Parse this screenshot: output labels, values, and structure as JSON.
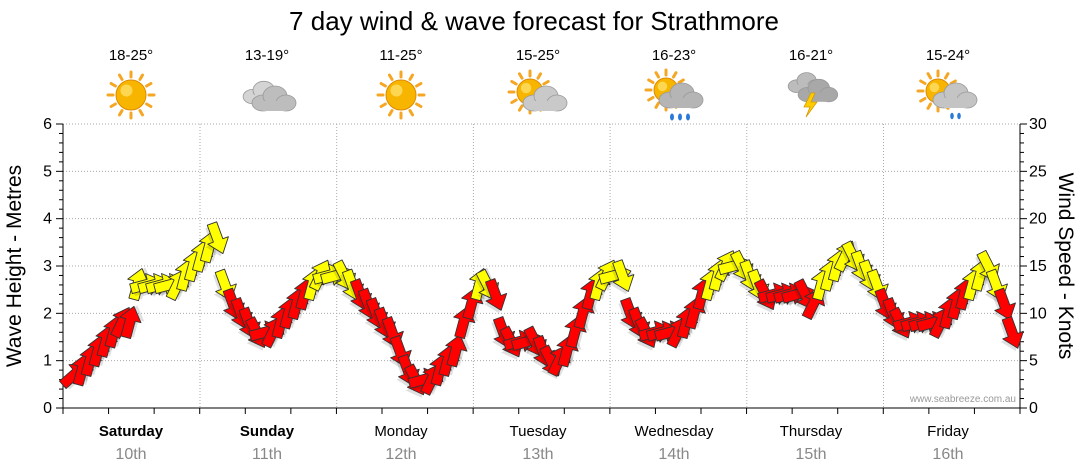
{
  "chart_data": {
    "type": "line",
    "title": "7 day wind & wave forecast for Strathmore",
    "ylabel_left": "Wave Height - Metres",
    "ylabel_right": "Wind Speed - Knots",
    "ylim_left": [
      0,
      6
    ],
    "ylim_right": [
      0,
      30
    ],
    "yticks_left": [
      "0",
      "1",
      "2",
      "3",
      "4",
      "5",
      "6"
    ],
    "yticks_right": [
      "0",
      "5",
      "10",
      "15",
      "20",
      "25",
      "30"
    ],
    "days": [
      {
        "name": "Saturday",
        "date": "10th",
        "temp": "18-25°",
        "weather": "sunny-icon",
        "bold": true
      },
      {
        "name": "Sunday",
        "date": "11th",
        "temp": "13-19°",
        "weather": "cloudy-icon",
        "bold": true
      },
      {
        "name": "Monday",
        "date": "12th",
        "temp": "11-25°",
        "weather": "sunny-icon",
        "bold": false
      },
      {
        "name": "Tuesday",
        "date": "13th",
        "temp": "15-25°",
        "weather": "partly-cloudy-icon",
        "bold": false
      },
      {
        "name": "Wednesday",
        "date": "14th",
        "temp": "16-23°",
        "weather": "showers-icon",
        "bold": false
      },
      {
        "name": "Thursday",
        "date": "15th",
        "temp": "16-21°",
        "weather": "storm-icon",
        "bold": false
      },
      {
        "name": "Friday",
        "date": "16th",
        "temp": "15-24°",
        "weather": "partly-cloudy-showers-icon",
        "bold": false
      }
    ],
    "series": [
      {
        "name": "Wind speed (knots)",
        "values": [
          3.5,
          4,
          5,
          6,
          7,
          8,
          9,
          9,
          13,
          13,
          13,
          13,
          13,
          13,
          14,
          15,
          16,
          17,
          18,
          13,
          11,
          10,
          9,
          8,
          8,
          8,
          9,
          10,
          11,
          12,
          13,
          14,
          14,
          14,
          14,
          13,
          12,
          11,
          10,
          9,
          8,
          6,
          4,
          3,
          3,
          3,
          4,
          5,
          6,
          9,
          11,
          13,
          13,
          12,
          8,
          7,
          7,
          7,
          7,
          6,
          5,
          5,
          6,
          8,
          10,
          12,
          13,
          14,
          14,
          14,
          10,
          9,
          8,
          8,
          8,
          8,
          8,
          9,
          10,
          12,
          13,
          14,
          15,
          15,
          15,
          14,
          13,
          12,
          12,
          12,
          12,
          12,
          12,
          11,
          13,
          14,
          15,
          16,
          16,
          15,
          14,
          13,
          11,
          10,
          9,
          9,
          9,
          9,
          9,
          9,
          10,
          11,
          12,
          13,
          14,
          15,
          13,
          11,
          8
        ],
        "arrow_colors": {
          "fresh": "#ffff00",
          "strong": "#ff0000"
        }
      }
    ],
    "credit": "www.seabreeze.com.au"
  }
}
